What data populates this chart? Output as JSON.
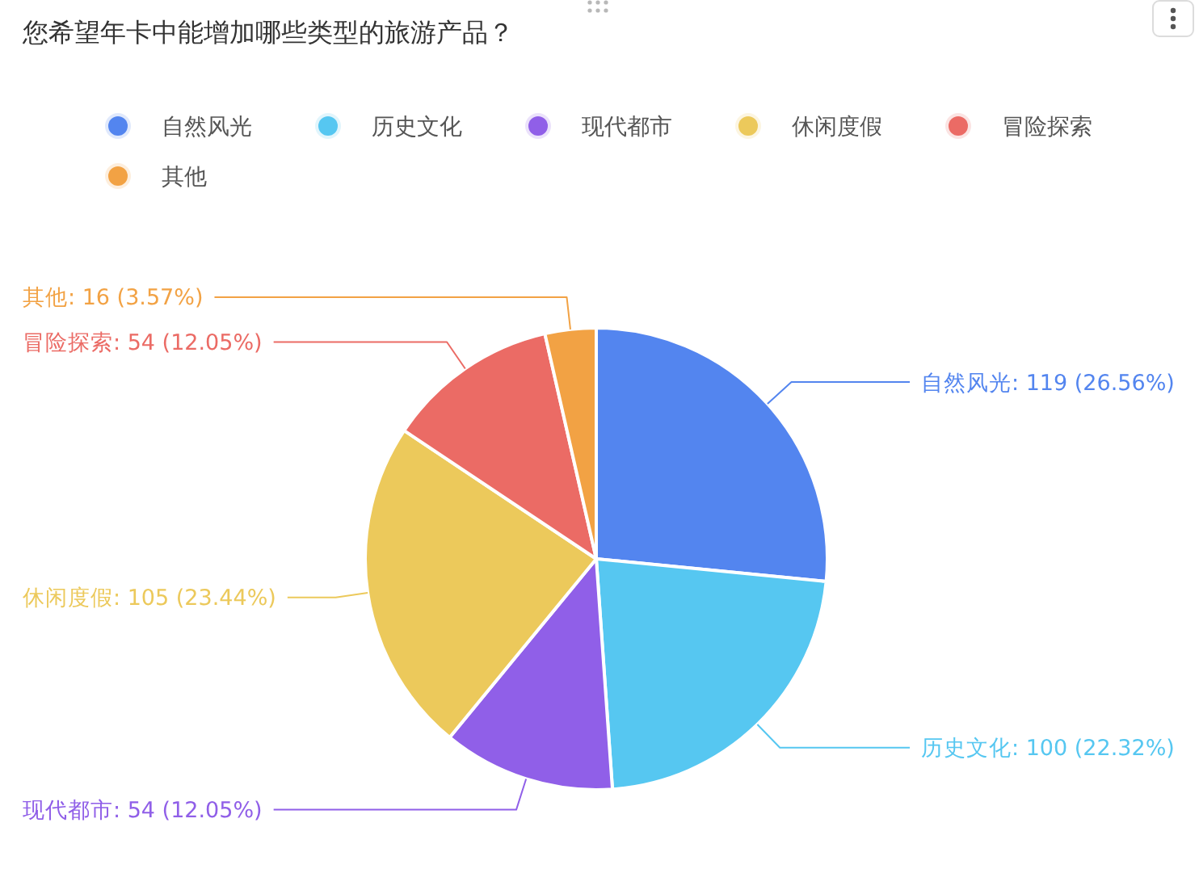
{
  "chart_data": {
    "type": "pie",
    "title": "您希望年卡中能增加哪些类型的旅游产品？",
    "categories": [
      "自然风光",
      "历史文化",
      "现代都市",
      "休闲度假",
      "冒险探索",
      "其他"
    ],
    "values": [
      119,
      100,
      54,
      105,
      54,
      16
    ],
    "colors": [
      "#5385ef",
      "#56c7f1",
      "#905fe8",
      "#ecc95b",
      "#eb6b65",
      "#f2a244"
    ],
    "value_labels": [
      "自然风光: 119 (26.56%)",
      "历史文化: 100 (22.32%)",
      "现代都市: 54 (12.05%)",
      "休闲度假: 105 (23.44%)",
      "冒险探索: 54 (12.05%)",
      "其他: 16 (3.57%)"
    ],
    "legend": "top"
  }
}
